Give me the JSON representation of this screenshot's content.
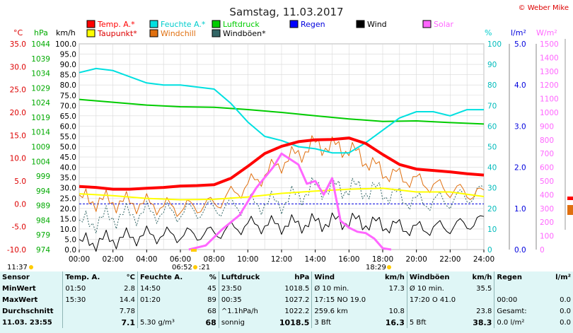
{
  "title": "Samstag, 11.03.2017",
  "credit": "© Weber Mike",
  "legend": [
    {
      "label": "Temp. A.*",
      "color": "#ff0000"
    },
    {
      "label": "Feuchte A.*",
      "color": "#00e0e0"
    },
    {
      "label": "Luftdruck",
      "color": "#00cc00"
    },
    {
      "label": "Regen",
      "color": "#0000ff"
    },
    {
      "label": "Wind",
      "color": "#000000"
    },
    {
      "label": "Solar",
      "color": "#ff66ff"
    },
    {
      "label": "Taupunkt*",
      "color": "#ffff00"
    },
    {
      "label": "Windchill",
      "color": "#e07010"
    },
    {
      "label": "Windböen*",
      "color": "#336666"
    }
  ],
  "axis_units": {
    "temp": "°C",
    "pressure": "hPa",
    "wind": "km/h",
    "humidity": "%",
    "rain": "l/m²",
    "solar": "W/m²"
  },
  "sunrise": "06:52",
  "sunset": "18:29",
  "time_now": "11:37",
  "sunrise_suffix": ":21",
  "chart_data": {
    "type": "line",
    "x_ticks": [
      "00:00",
      "02:00",
      "04:00",
      "06:00",
      "08:00",
      "10:00",
      "12:00",
      "14:00",
      "16:00",
      "18:00",
      "20:00",
      "22:00",
      "24:00"
    ],
    "axes": {
      "temp": {
        "min": -10,
        "max": 35,
        "ticks": [
          "35.0",
          "30.0",
          "25.0",
          "20.0",
          "15.0",
          "10.0",
          "5.0",
          "0.0",
          "-5.0",
          "-10.0"
        ]
      },
      "pressure": {
        "ticks": [
          "1044",
          "1039",
          "1034",
          "1029",
          "1024",
          "1019",
          "1014",
          "1009",
          "1004",
          "999",
          "994",
          "989",
          "984",
          "979",
          "974"
        ]
      },
      "wind": {
        "min": 0,
        "max": 100,
        "ticks": [
          "100.0",
          "95.0",
          "90.0",
          "85.0",
          "80.0",
          "75.0",
          "70.0",
          "65.0",
          "60.0",
          "55.0",
          "50.0",
          "45.0",
          "40.0",
          "35.0",
          "30.0",
          "25.0",
          "20.0",
          "15.0",
          "10.0",
          "5.0",
          "0.0"
        ]
      },
      "humidity": {
        "min": 0,
        "max": 100,
        "ticks": [
          "100",
          "90",
          "80",
          "70",
          "60",
          "50",
          "40",
          "30",
          "20",
          "10",
          "0"
        ]
      },
      "rain": {
        "min": 0,
        "max": 5,
        "ticks": [
          "5.0",
          "4.0",
          "3.0",
          "2.0",
          "1.0",
          "0.0"
        ]
      },
      "solar": {
        "min": 0,
        "max": 1500,
        "ticks": [
          "1500",
          "1400",
          "1300",
          "1200",
          "1100",
          "1000",
          "900",
          "800",
          "700",
          "600",
          "500",
          "400",
          "300",
          "200",
          "100",
          "0"
        ]
      }
    },
    "series": [
      {
        "name": "Temp. A.*",
        "unit": "°C",
        "x": [
          0,
          1,
          2,
          3,
          4,
          5,
          6,
          7,
          8,
          9,
          10,
          11,
          12,
          13,
          14,
          15,
          16,
          17,
          18,
          19,
          20,
          21,
          22,
          23,
          24
        ],
        "values": [
          3.8,
          3.6,
          3.2,
          3.2,
          3.4,
          3.6,
          3.9,
          4.0,
          4.2,
          5.6,
          8.2,
          11.0,
          12.6,
          13.6,
          14.0,
          14.1,
          14.4,
          13.2,
          10.8,
          8.6,
          7.6,
          7.3,
          7.0,
          6.6,
          6.3
        ]
      },
      {
        "name": "Feuchte A.*",
        "unit": "%",
        "x": [
          0,
          1,
          2,
          3,
          4,
          5,
          6,
          7,
          8,
          9,
          10,
          11,
          12,
          13,
          14,
          15,
          16,
          17,
          18,
          19,
          20,
          21,
          22,
          23,
          24
        ],
        "values": [
          86,
          88,
          87,
          84,
          81,
          80,
          80,
          79,
          78,
          71,
          62,
          55,
          53,
          50,
          49,
          47,
          47,
          52,
          58,
          64,
          67,
          67,
          65,
          68,
          68
        ]
      },
      {
        "name": "Luftdruck",
        "unit": "hPa",
        "x": [
          0,
          2,
          4,
          6,
          8,
          10,
          12,
          14,
          16,
          18,
          20,
          22,
          24
        ],
        "values": [
          1027.2,
          1026.2,
          1025.2,
          1024.6,
          1024.4,
          1023.6,
          1022.6,
          1021.4,
          1020.3,
          1019.4,
          1019.6,
          1019.0,
          1018.5
        ]
      },
      {
        "name": "Taupunkt*",
        "unit": "°C",
        "x": [
          0,
          2,
          4,
          6,
          8,
          10,
          12,
          14,
          16,
          18,
          20,
          22,
          24
        ],
        "values": [
          2.2,
          1.8,
          1.2,
          0.9,
          1.0,
          1.5,
          2.3,
          2.8,
          3.2,
          3.4,
          2.6,
          2.6,
          1.6
        ]
      },
      {
        "name": "Wind",
        "unit": "km/h",
        "x": [
          0,
          2,
          4,
          6,
          8,
          10,
          12,
          14,
          16,
          18,
          20,
          22,
          24
        ],
        "values": [
          3,
          5,
          7,
          7,
          8,
          12,
          12,
          13,
          14,
          12,
          10,
          11,
          14
        ]
      },
      {
        "name": "Windchill",
        "unit": "°C",
        "x": [
          0,
          2,
          4,
          6,
          8,
          10,
          12,
          14,
          16,
          18,
          20,
          22,
          24
        ],
        "values": [
          1.0,
          0.5,
          0.0,
          -1.0,
          0.0,
          4.0,
          9.0,
          13.0,
          12.0,
          7.0,
          5.0,
          3.0,
          2.0
        ]
      },
      {
        "name": "Windböen*",
        "unit": "km/h",
        "x": [
          0,
          2,
          4,
          6,
          8,
          10,
          12,
          14,
          16,
          18,
          20,
          22,
          24
        ],
        "values": [
          12,
          16,
          18,
          18,
          20,
          22,
          23,
          30,
          30,
          28,
          23,
          24,
          28
        ]
      },
      {
        "name": "Solar",
        "unit": "W/m²",
        "x": [
          6.5,
          7.5,
          8.5,
          9.5,
          10.5,
          11.5,
          12,
          12.5,
          13,
          13.5,
          14,
          14.5,
          15,
          15.5,
          16,
          16.5,
          17,
          17.5,
          18,
          18.5
        ],
        "values": [
          0,
          30,
          150,
          250,
          450,
          600,
          700,
          660,
          620,
          480,
          500,
          400,
          520,
          210,
          160,
          130,
          120,
          80,
          10,
          0
        ]
      },
      {
        "name": "Regen",
        "unit": "l/m²",
        "x": [
          0,
          24
        ],
        "values": [
          0,
          0
        ]
      }
    ]
  },
  "stats": {
    "header": [
      "Sensor",
      "Temp. A.",
      "°C",
      "Feuchte A.",
      "%",
      "Luftdruck",
      "hPa",
      "Wind",
      "km/h",
      "Windböen",
      "km/h",
      "Regen",
      "l/m²"
    ],
    "rows": [
      [
        "MinWert",
        "01:50",
        "2.8",
        "14:50",
        "45",
        "23:50",
        "1018.5",
        "Ø 10 min.",
        "17.3",
        "Ø 10 min.",
        "35.5",
        "",
        ""
      ],
      [
        "MaxWert",
        "15:30",
        "14.4",
        "01:20",
        "89",
        "00:35",
        "1027.2",
        "17:15   NO 19.0",
        "",
        "17:20       O 41.0",
        "",
        "00:00",
        "0.0"
      ],
      [
        "Durchschnitt",
        "",
        "7.78",
        "",
        "68",
        "^1.1hPa/h",
        "1022.2",
        "259.6 km",
        "10.8",
        "",
        "23.8",
        "Gesamt:",
        "0.0"
      ],
      [
        "11.03. 23:55",
        "",
        "7.1",
        "5.30 g/m³",
        "68",
        "sonnig",
        "1018.5",
        "3 Bft",
        "16.3",
        "5 Bft",
        "38.3",
        "0.0 l/m²",
        "0.0"
      ]
    ]
  }
}
